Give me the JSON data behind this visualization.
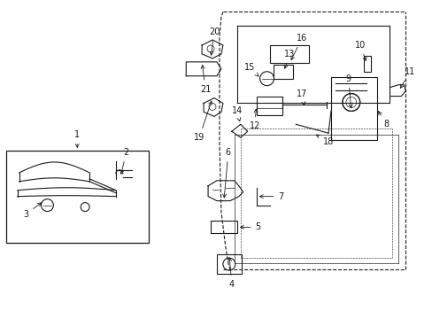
{
  "title": "",
  "bg_color": "#ffffff",
  "line_color": "#1a1a1a",
  "figsize": [
    4.89,
    3.6
  ],
  "dpi": 100
}
